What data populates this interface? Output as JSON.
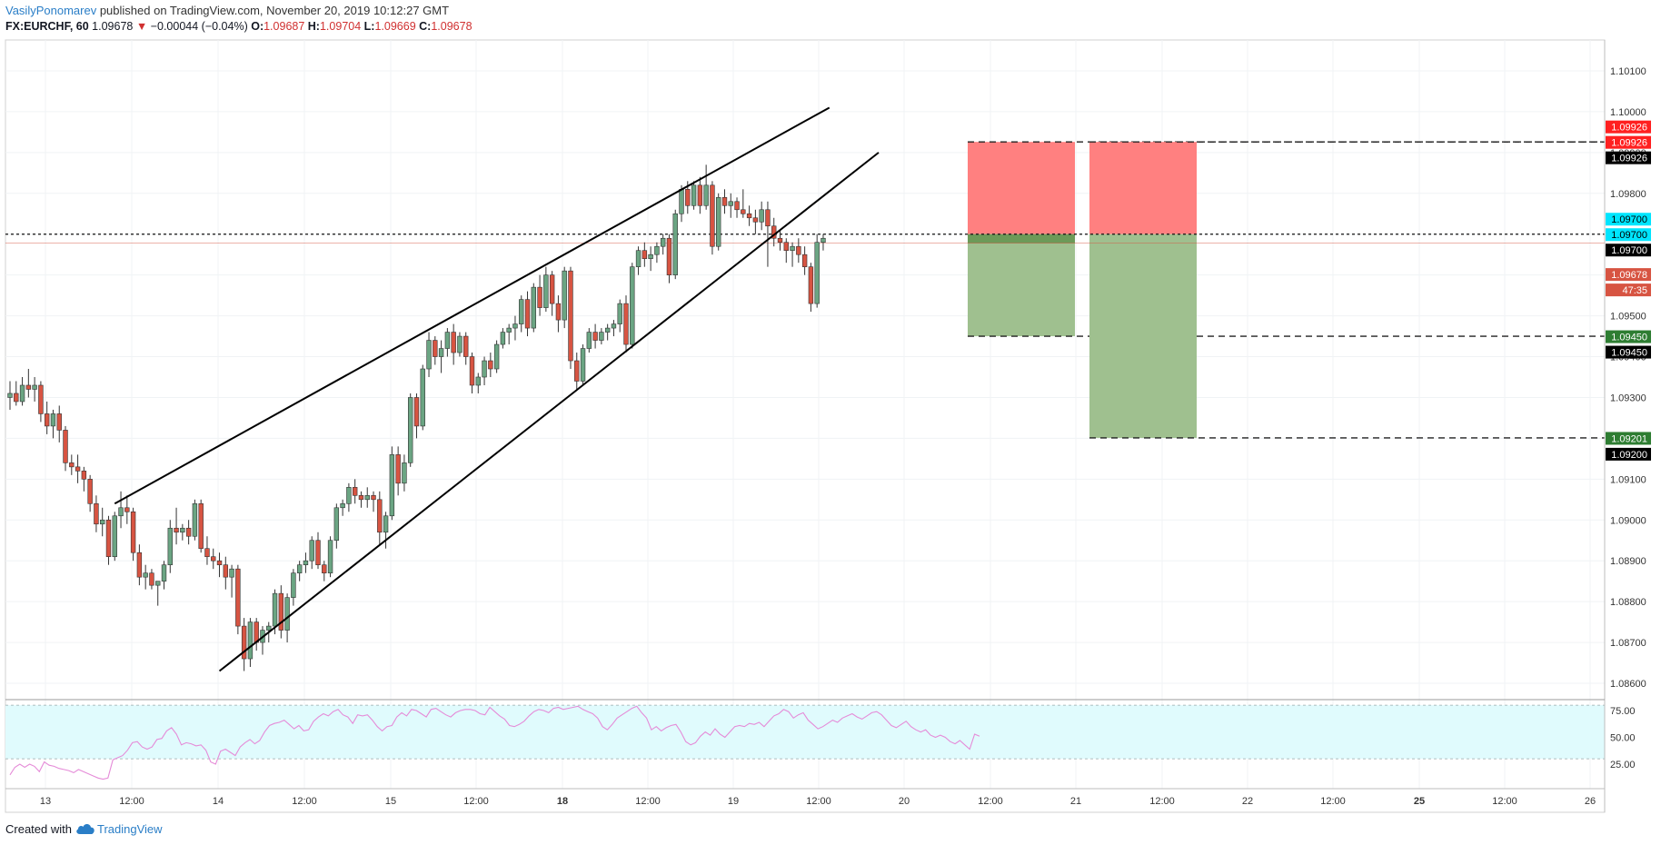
{
  "header": {
    "author": "VasilyPonomarev",
    "published": "published on TradingView.com, November 20, 2019 10:12:27 GMT"
  },
  "ohlc": {
    "symbol": "FX:EURCHF, 60",
    "last": "1.09678",
    "arrow": "▼",
    "change": "−0.00044 (−0.04%)",
    "o_label": "O:",
    "o": "1.09687",
    "h_label": "H:",
    "h": "1.09704",
    "l_label": "L:",
    "l": "1.09669",
    "c_label": "C:",
    "c": "1.09678"
  },
  "footer": {
    "created": "Created with",
    "brand": "TradingView"
  },
  "colors": {
    "up": "#6ba583",
    "down": "#d75442",
    "stop_zone": "#ff8080",
    "target_zone": "#9fc08f",
    "rsi_band": "#e0fbfd",
    "rsi_line": "#e58bd8",
    "label_red": "#ff2020",
    "label_cyan": "#00e5ff",
    "label_green": "#2e7d32",
    "label_black": "#000000",
    "label_last": "#d75442"
  },
  "chart_data": {
    "type": "candlestick",
    "symbol": "FX:EURCHF",
    "interval": "60",
    "x_ticks": [
      "13",
      "12:00",
      "14",
      "12:00",
      "15",
      "12:00",
      "18",
      "12:00",
      "19",
      "12:00",
      "20",
      "12:00",
      "21",
      "12:00",
      "22",
      "12:00",
      "25",
      "12:00",
      "26"
    ],
    "y_ticks": [
      "1.10100",
      "1.10000",
      "1.09900",
      "1.09800",
      "1.09700",
      "1.09600",
      "1.09500",
      "1.09400",
      "1.09300",
      "1.09200",
      "1.09100",
      "1.09000",
      "1.08900",
      "1.08800",
      "1.08700",
      "1.08600"
    ],
    "ylim": [
      1.0855,
      1.1018
    ],
    "grid": true,
    "candles": [
      [
        1.093,
        1.0934,
        1.0927,
        1.0931
      ],
      [
        1.0931,
        1.0934,
        1.0928,
        1.0929
      ],
      [
        1.0929,
        1.0935,
        1.0928,
        1.0933
      ],
      [
        1.0933,
        1.0937,
        1.093,
        1.0932
      ],
      [
        1.0932,
        1.0935,
        1.0929,
        1.0933
      ],
      [
        1.0933,
        1.0934,
        1.0924,
        1.0926
      ],
      [
        1.0926,
        1.0929,
        1.0921,
        1.0923
      ],
      [
        1.0923,
        1.0927,
        1.092,
        1.0926
      ],
      [
        1.0926,
        1.0928,
        1.0919,
        1.0922
      ],
      [
        1.0922,
        1.0923,
        1.0912,
        1.0914
      ],
      [
        1.0914,
        1.0916,
        1.0911,
        1.0913
      ],
      [
        1.0913,
        1.0916,
        1.0909,
        1.0912
      ],
      [
        1.0912,
        1.0913,
        1.0907,
        1.091
      ],
      [
        1.091,
        1.0911,
        1.0902,
        1.0904
      ],
      [
        1.0904,
        1.0906,
        1.0897,
        1.0899
      ],
      [
        1.0899,
        1.0903,
        1.0896,
        1.09
      ],
      [
        1.09,
        1.0901,
        1.0889,
        1.0891
      ],
      [
        1.0891,
        1.0902,
        1.089,
        1.0901
      ],
      [
        1.0901,
        1.0907,
        1.0898,
        1.0903
      ],
      [
        1.0903,
        1.0906,
        1.0899,
        1.0902
      ],
      [
        1.0902,
        1.0903,
        1.089,
        1.0892
      ],
      [
        1.0892,
        1.0894,
        1.0884,
        1.0886
      ],
      [
        1.0886,
        1.0889,
        1.0883,
        1.0887
      ],
      [
        1.0887,
        1.0888,
        1.0883,
        1.0884
      ],
      [
        1.0884,
        1.0885,
        1.0879,
        1.0885
      ],
      [
        1.0885,
        1.089,
        1.0883,
        1.0889
      ],
      [
        1.0889,
        1.09,
        1.0887,
        1.0898
      ],
      [
        1.0898,
        1.0903,
        1.0894,
        1.0897
      ],
      [
        1.0897,
        1.0899,
        1.0895,
        1.0898
      ],
      [
        1.0898,
        1.09,
        1.0894,
        1.0896
      ],
      [
        1.0896,
        1.0905,
        1.0895,
        1.0904
      ],
      [
        1.0904,
        1.0905,
        1.0892,
        1.0893
      ],
      [
        1.0893,
        1.0896,
        1.0889,
        1.0891
      ],
      [
        1.0891,
        1.0893,
        1.0888,
        1.089
      ],
      [
        1.089,
        1.0892,
        1.0886,
        1.0889
      ],
      [
        1.0889,
        1.0891,
        1.0883,
        1.0886
      ],
      [
        1.0886,
        1.0889,
        1.0881,
        1.0888
      ],
      [
        1.0888,
        1.0889,
        1.0872,
        1.0874
      ],
      [
        1.0874,
        1.0876,
        1.0863,
        1.0866
      ],
      [
        1.0866,
        1.0876,
        1.0864,
        1.0875
      ],
      [
        1.0875,
        1.0876,
        1.0868,
        1.087
      ],
      [
        1.087,
        1.0874,
        1.0867,
        1.0873
      ],
      [
        1.0873,
        1.0875,
        1.087,
        1.0874
      ],
      [
        1.0874,
        1.0883,
        1.0872,
        1.0882
      ],
      [
        1.0882,
        1.0884,
        1.0871,
        1.0873
      ],
      [
        1.0873,
        1.0882,
        1.087,
        1.0881
      ],
      [
        1.0881,
        1.0888,
        1.0879,
        1.0887
      ],
      [
        1.0887,
        1.089,
        1.0885,
        1.0889
      ],
      [
        1.0889,
        1.0892,
        1.0887,
        1.089
      ],
      [
        1.089,
        1.0896,
        1.0888,
        1.0895
      ],
      [
        1.0895,
        1.0897,
        1.0888,
        1.0889
      ],
      [
        1.0889,
        1.089,
        1.0885,
        1.0887
      ],
      [
        1.0887,
        1.0896,
        1.0886,
        1.0895
      ],
      [
        1.0895,
        1.0904,
        1.0893,
        1.0903
      ],
      [
        1.0903,
        1.0905,
        1.0901,
        1.0904
      ],
      [
        1.0904,
        1.0909,
        1.0902,
        1.0908
      ],
      [
        1.0908,
        1.091,
        1.0904,
        1.0906
      ],
      [
        1.0906,
        1.0907,
        1.0903,
        1.0905
      ],
      [
        1.0905,
        1.0908,
        1.0903,
        1.0906
      ],
      [
        1.0906,
        1.0907,
        1.0902,
        1.0905
      ],
      [
        1.0905,
        1.0907,
        1.0894,
        1.0897
      ],
      [
        1.0897,
        1.0902,
        1.0893,
        1.0901
      ],
      [
        1.0901,
        1.0918,
        1.09,
        1.0916
      ],
      [
        1.0916,
        1.0918,
        1.0906,
        1.0909
      ],
      [
        1.0909,
        1.0916,
        1.0907,
        1.0914
      ],
      [
        1.0914,
        1.0931,
        1.0913,
        1.093
      ],
      [
        1.093,
        1.0931,
        1.092,
        1.0923
      ],
      [
        1.0923,
        1.0938,
        1.0922,
        1.0937
      ],
      [
        1.0937,
        1.0946,
        1.0935,
        1.0944
      ],
      [
        1.0944,
        1.0945,
        1.0938,
        1.094
      ],
      [
        1.094,
        1.0944,
        1.0936,
        1.0942
      ],
      [
        1.0942,
        1.0947,
        1.094,
        1.0946
      ],
      [
        1.0946,
        1.0948,
        1.0938,
        1.0941
      ],
      [
        1.0941,
        1.0946,
        1.094,
        1.0945
      ],
      [
        1.0945,
        1.0946,
        1.0938,
        1.094
      ],
      [
        1.094,
        1.0941,
        1.0931,
        1.0933
      ],
      [
        1.0933,
        1.0936,
        1.0931,
        1.0935
      ],
      [
        1.0935,
        1.094,
        1.0933,
        1.0939
      ],
      [
        1.0939,
        1.0941,
        1.0935,
        1.0937
      ],
      [
        1.0937,
        1.0944,
        1.0936,
        1.0943
      ],
      [
        1.0943,
        1.0947,
        1.0942,
        1.0946
      ],
      [
        1.0946,
        1.0948,
        1.0943,
        1.0947
      ],
      [
        1.0947,
        1.095,
        1.0944,
        1.0948
      ],
      [
        1.0948,
        1.0955,
        1.0946,
        1.0954
      ],
      [
        1.0954,
        1.0956,
        1.0945,
        1.0947
      ],
      [
        1.0947,
        1.0958,
        1.0946,
        1.0957
      ],
      [
        1.0957,
        1.096,
        1.095,
        1.0952
      ],
      [
        1.0952,
        1.0962,
        1.0951,
        1.096
      ],
      [
        1.096,
        1.0961,
        1.095,
        1.0953
      ],
      [
        1.0953,
        1.0955,
        1.0946,
        1.0949
      ],
      [
        1.0949,
        1.0962,
        1.0947,
        1.0961
      ],
      [
        1.0961,
        1.0962,
        1.0937,
        1.0939
      ],
      [
        1.0939,
        1.0941,
        1.0932,
        1.0934
      ],
      [
        1.0934,
        1.0943,
        1.0933,
        1.0942
      ],
      [
        1.0942,
        1.0947,
        1.0941,
        1.0946
      ],
      [
        1.0946,
        1.0948,
        1.0942,
        1.0944
      ],
      [
        1.0944,
        1.0947,
        1.0943,
        1.0946
      ],
      [
        1.0946,
        1.0948,
        1.0944,
        1.0947
      ],
      [
        1.0947,
        1.0949,
        1.0945,
        1.0948
      ],
      [
        1.0948,
        1.0954,
        1.0946,
        1.0953
      ],
      [
        1.0953,
        1.0955,
        1.0941,
        1.0943
      ],
      [
        1.0943,
        1.0963,
        1.0942,
        1.0962
      ],
      [
        1.0962,
        1.0967,
        1.096,
        1.0966
      ],
      [
        1.0966,
        1.0968,
        1.0962,
        1.0964
      ],
      [
        1.0964,
        1.0967,
        1.0961,
        1.0965
      ],
      [
        1.0965,
        1.0968,
        1.0963,
        1.0967
      ],
      [
        1.0967,
        1.097,
        1.0965,
        1.0969
      ],
      [
        1.0969,
        1.097,
        1.0958,
        1.096
      ],
      [
        1.096,
        1.0976,
        1.0959,
        1.0975
      ],
      [
        1.0975,
        1.0982,
        1.0973,
        1.0981
      ],
      [
        1.0981,
        1.0983,
        1.0975,
        1.0977
      ],
      [
        1.0977,
        1.0983,
        1.0976,
        1.0982
      ],
      [
        1.0982,
        1.0984,
        1.0975,
        1.0977
      ],
      [
        1.0977,
        1.0987,
        1.0976,
        1.0982
      ],
      [
        1.0982,
        1.0983,
        1.0965,
        1.0967
      ],
      [
        1.0967,
        1.098,
        1.0966,
        1.0979
      ],
      [
        1.0979,
        1.0981,
        1.0975,
        1.0977
      ],
      [
        1.0977,
        1.098,
        1.0974,
        1.0978
      ],
      [
        1.0978,
        1.0979,
        1.0974,
        1.0976
      ],
      [
        1.0976,
        1.0981,
        1.0974,
        1.0975
      ],
      [
        1.0975,
        1.0977,
        1.0972,
        1.0974
      ],
      [
        1.0974,
        1.0976,
        1.097,
        1.0973
      ],
      [
        1.0973,
        1.0978,
        1.0971,
        1.0976
      ],
      [
        1.0976,
        1.0978,
        1.0962,
        1.0972
      ],
      [
        1.0972,
        1.0974,
        1.0967,
        1.0969
      ],
      [
        1.0969,
        1.0971,
        1.0966,
        1.0968
      ],
      [
        1.0968,
        1.0969,
        1.0963,
        1.0966
      ],
      [
        1.0966,
        1.0968,
        1.0962,
        1.0967
      ],
      [
        1.0967,
        1.0969,
        1.0963,
        1.0965
      ],
      [
        1.0965,
        1.0967,
        1.096,
        1.0962
      ],
      [
        1.0962,
        1.0963,
        1.0951,
        1.0953
      ],
      [
        1.0953,
        1.097,
        1.0952,
        1.0968
      ],
      [
        1.0968,
        1.097,
        1.0966,
        1.0969
      ]
    ],
    "trendlines": [
      {
        "from": [
          17,
          1.0904
        ],
        "to": [
          133,
          1.1001
        ]
      },
      {
        "from": [
          34,
          1.0863
        ],
        "to": [
          141,
          1.099
        ]
      }
    ],
    "horizontal_lines": [
      1.097
    ],
    "positions": [
      {
        "type": "short",
        "entry": 1.097,
        "stop": 1.09926,
        "target": 1.0945
      },
      {
        "type": "short",
        "entry": 1.097,
        "stop": 1.09926,
        "target": 1.09201
      }
    ],
    "price_labels": [
      {
        "text": "1.09926",
        "value": 1.09926,
        "color": "red",
        "slot": -1
      },
      {
        "text": "1.09926",
        "value": 1.09926,
        "color": "red",
        "slot": 0
      },
      {
        "text": "1.09926",
        "value": 1.09926,
        "color": "black",
        "slot": 1
      },
      {
        "text": "1.09700",
        "value": 1.097,
        "color": "cyan",
        "slot": -1
      },
      {
        "text": "1.09700",
        "value": 1.097,
        "color": "cyan",
        "slot": 0
      },
      {
        "text": "1.09700",
        "value": 1.097,
        "color": "black",
        "slot": 1
      },
      {
        "text": "1.09678",
        "value": 1.09678,
        "color": "last",
        "slot": 2
      },
      {
        "text": "47:35",
        "value": 1.09678,
        "color": "last",
        "slot": 3
      },
      {
        "text": "1.09450",
        "value": 1.0945,
        "color": "green",
        "slot": 0
      },
      {
        "text": "1.09450",
        "value": 1.0945,
        "color": "black",
        "slot": 1
      },
      {
        "text": "1.09201",
        "value": 1.09201,
        "color": "green",
        "slot": 0
      },
      {
        "text": "1.09200",
        "value": 1.092,
        "color": "black",
        "slot": 1
      }
    ],
    "rsi": {
      "y_ticks": [
        "75.00",
        "50.00",
        "25.00"
      ],
      "ylim": [
        10,
        82
      ],
      "bands": [
        30,
        80
      ],
      "values": [
        15,
        22,
        25,
        22,
        25,
        23,
        18,
        27,
        24,
        23,
        21,
        20,
        19,
        17,
        20,
        18,
        16,
        14,
        12,
        11,
        12,
        29,
        31,
        33,
        38,
        45,
        46,
        41,
        39,
        41,
        48,
        49,
        56,
        59,
        53,
        43,
        45,
        44,
        42,
        43,
        38,
        27,
        25,
        37,
        39,
        36,
        33,
        41,
        45,
        48,
        44,
        47,
        55,
        61,
        63,
        64,
        66,
        62,
        58,
        61,
        56,
        57,
        65,
        69,
        72,
        70,
        74,
        76,
        71,
        69,
        63,
        71,
        70,
        71,
        66,
        60,
        56,
        60,
        61,
        69,
        73,
        70,
        76,
        75,
        72,
        69,
        76,
        77,
        74,
        71,
        69,
        73,
        75,
        76,
        76,
        75,
        72,
        71,
        78,
        74,
        70,
        67,
        61,
        60,
        62,
        65,
        70,
        74,
        76,
        75,
        73,
        77,
        78,
        76,
        77,
        78,
        79,
        76,
        74,
        72,
        68,
        60,
        57,
        62,
        68,
        71,
        74,
        77,
        79,
        73,
        68,
        57,
        60,
        56,
        59,
        61,
        62,
        55,
        46,
        43,
        45,
        51,
        55,
        52,
        58,
        53,
        50,
        55,
        60,
        61,
        60,
        63,
        62,
        64,
        60,
        65,
        70,
        72,
        76,
        74,
        68,
        71,
        73,
        66,
        62,
        58,
        60,
        63,
        66,
        64,
        68,
        70,
        72,
        69,
        67,
        70,
        73,
        74,
        71,
        66,
        61,
        59,
        62,
        65,
        60,
        57,
        55,
        57,
        52,
        50,
        52,
        50,
        46,
        44,
        47,
        43,
        39,
        53,
        51
      ]
    }
  }
}
